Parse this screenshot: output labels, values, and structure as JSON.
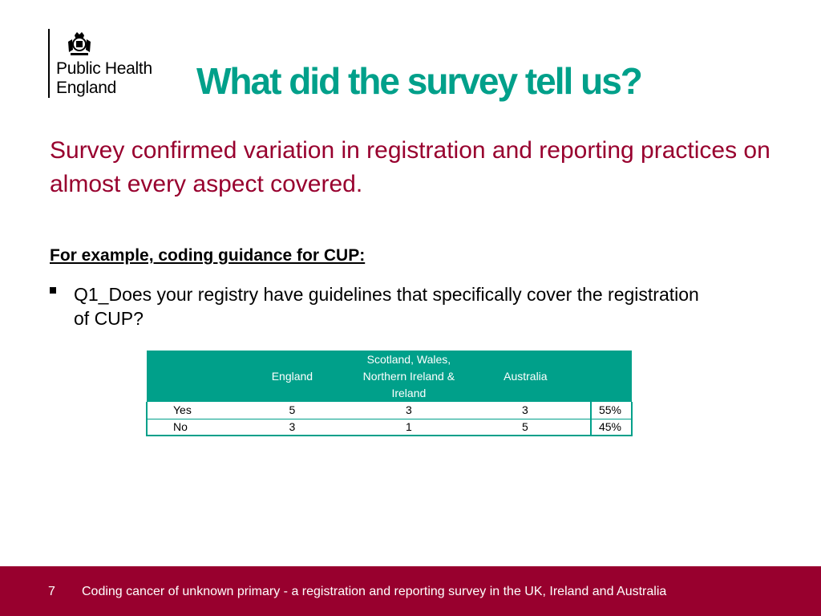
{
  "logo": {
    "line1": "Public Health",
    "line2": "England"
  },
  "slide": {
    "title": "What did the survey tell us?",
    "subtitle": "Survey confirmed variation in registration and reporting practices on almost every aspect covered.",
    "example_heading": "For example, coding guidance for CUP:",
    "bullet": "Q1_Does your registry have guidelines that specifically cover the registration of CUP?"
  },
  "table": {
    "headers": {
      "col0": "",
      "col1": "England",
      "col2_line1": "Scotland, Wales,",
      "col2_line2": "Northern Ireland &",
      "col2_line3": "Ireland",
      "col3": "Australia",
      "col4": ""
    },
    "rows": [
      {
        "label": "Yes",
        "england": "5",
        "scotland_wales_ni_ireland": "3",
        "australia": "3",
        "percent": "55%"
      },
      {
        "label": "No",
        "england": "3",
        "scotland_wales_ni_ireland": "1",
        "australia": "5",
        "percent": "45%"
      }
    ]
  },
  "footer": {
    "page_number": "7",
    "text": "Coding cancer of unknown primary - a registration and reporting survey in the UK, Ireland and Australia"
  },
  "colors": {
    "teal": "#00a08a",
    "maroon": "#98002e"
  }
}
